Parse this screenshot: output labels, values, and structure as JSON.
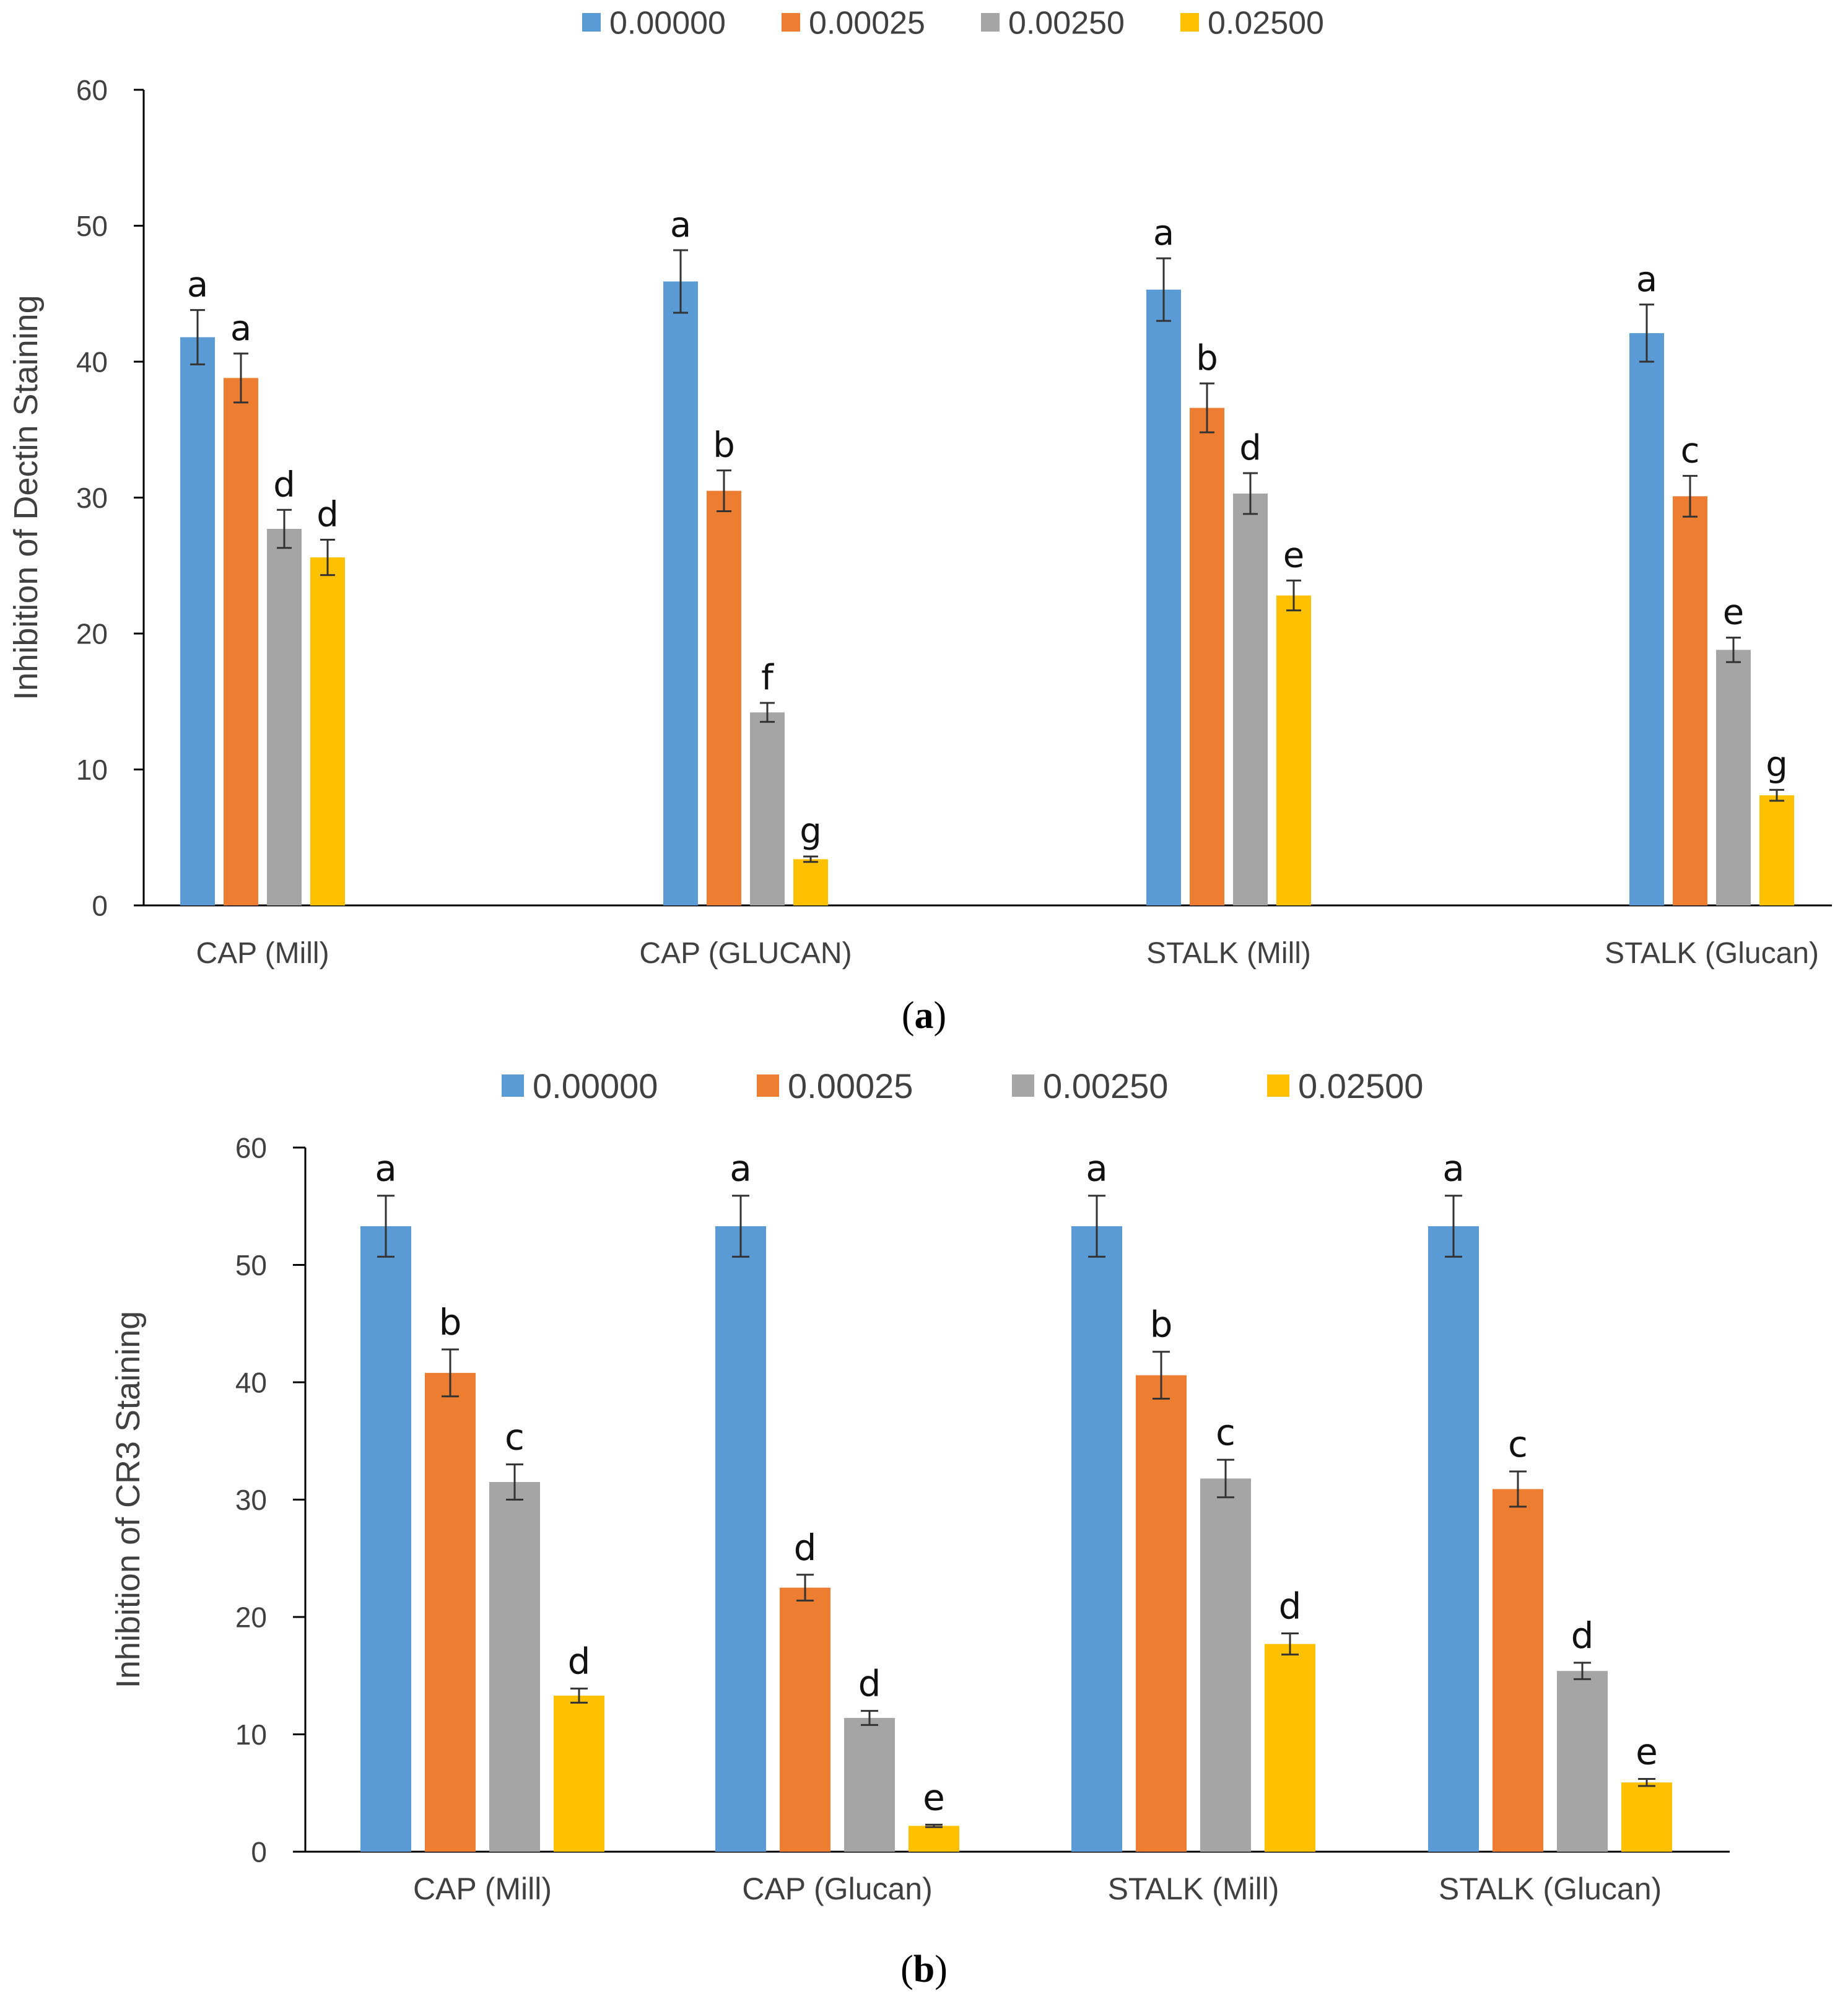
{
  "chart_data": [
    {
      "type": "bar",
      "panel_label": "a",
      "title": "",
      "xlabel": "",
      "ylabel": "Inhibition of Dectin Staining",
      "ylim": [
        0,
        60
      ],
      "yticks": [
        "0",
        "10",
        "20",
        "30",
        "40",
        "50",
        "60"
      ],
      "ytick_values": [
        0,
        10,
        20,
        30,
        40,
        50,
        60
      ],
      "grid": false,
      "legend_position": "top-center",
      "categories": [
        "CAP (Mill)",
        "CAP (GLUCAN)",
        "STALK (Mill)",
        "STALK (Glucan)"
      ],
      "series": [
        {
          "name": "0.00000",
          "color": "#5b9bd5",
          "values": [
            41.8,
            45.9,
            45.3,
            42.1
          ],
          "errors": [
            2.0,
            2.3,
            2.3,
            2.1
          ],
          "letters": [
            "a",
            "a",
            "a",
            "a"
          ]
        },
        {
          "name": "0.00025",
          "color": "#ed7d31",
          "values": [
            38.8,
            30.5,
            36.6,
            30.1
          ],
          "errors": [
            1.8,
            1.5,
            1.8,
            1.5
          ],
          "letters": [
            "a",
            "b",
            "b",
            "c"
          ]
        },
        {
          "name": "0.00250",
          "color": "#a5a5a5",
          "values": [
            27.7,
            14.2,
            30.3,
            18.8
          ],
          "errors": [
            1.4,
            0.7,
            1.5,
            0.9
          ],
          "letters": [
            "d",
            "f",
            "d",
            "e"
          ]
        },
        {
          "name": "0.02500",
          "color": "#ffc000",
          "values": [
            25.6,
            3.4,
            22.8,
            8.1
          ],
          "errors": [
            1.3,
            0.2,
            1.1,
            0.4
          ],
          "letters": [
            "d",
            "g",
            "e",
            "g"
          ]
        }
      ]
    },
    {
      "type": "bar",
      "panel_label": "b",
      "title": "",
      "xlabel": "",
      "ylabel": "Inhibition of CR3 Staining",
      "ylim": [
        0,
        60
      ],
      "yticks": [
        "0",
        "10",
        "20",
        "30",
        "40",
        "50",
        "60"
      ],
      "ytick_values": [
        0,
        10,
        20,
        30,
        40,
        50,
        60
      ],
      "grid": false,
      "legend_position": "top-center",
      "categories": [
        "CAP (Mill)",
        "CAP (Glucan)",
        "STALK (Mill)",
        "STALK (Glucan)"
      ],
      "series": [
        {
          "name": "0.00000",
          "color": "#5b9bd5",
          "values": [
            53.3,
            53.3,
            53.3,
            53.3
          ],
          "errors": [
            2.6,
            2.6,
            2.6,
            2.6
          ],
          "letters": [
            "a",
            "a",
            "a",
            "a"
          ]
        },
        {
          "name": "0.00025",
          "color": "#ed7d31",
          "values": [
            40.8,
            22.5,
            40.6,
            30.9
          ],
          "errors": [
            2.0,
            1.1,
            2.0,
            1.5
          ],
          "letters": [
            "b",
            "d",
            "b",
            "c"
          ]
        },
        {
          "name": "0.00250",
          "color": "#a5a5a5",
          "values": [
            31.5,
            11.4,
            31.8,
            15.4
          ],
          "errors": [
            1.5,
            0.6,
            1.6,
            0.7
          ],
          "letters": [
            "c",
            "d",
            "c",
            "d"
          ]
        },
        {
          "name": "0.02500",
          "color": "#ffc000",
          "values": [
            13.3,
            2.2,
            17.7,
            5.9
          ],
          "errors": [
            0.6,
            0.1,
            0.9,
            0.3
          ],
          "letters": [
            "d",
            "e",
            "d",
            "e"
          ]
        }
      ]
    }
  ]
}
